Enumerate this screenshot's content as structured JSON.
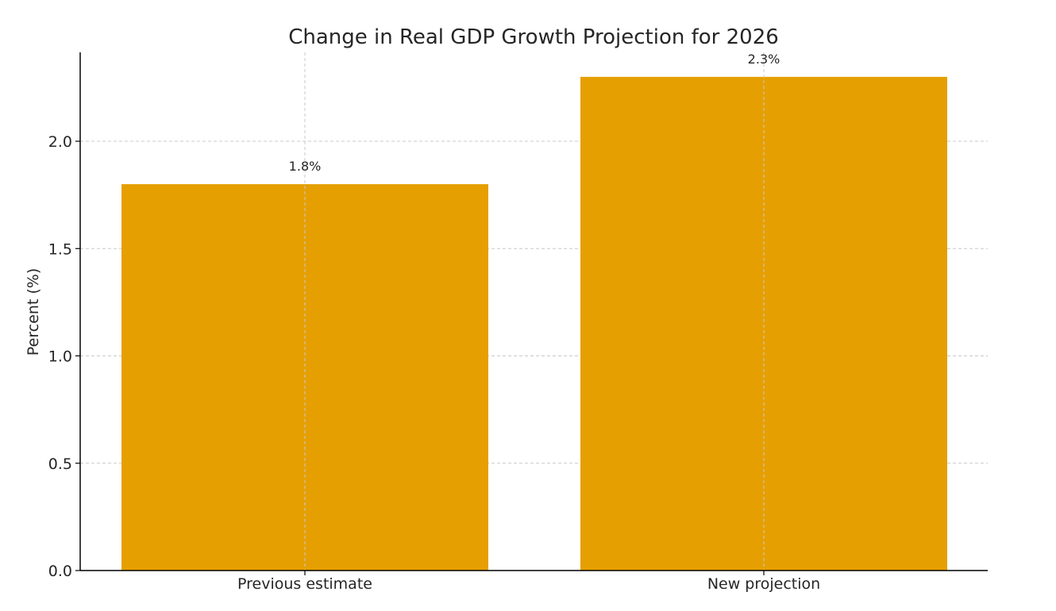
{
  "chart_data": {
    "type": "bar",
    "title": "Change in Real GDP Growth Projection for 2026",
    "xlabel": "",
    "ylabel": "Percent (%)",
    "categories": [
      "Previous estimate",
      "New projection"
    ],
    "values": [
      1.8,
      2.3
    ],
    "data_labels": [
      "1.8%",
      "2.3%"
    ],
    "ylim": [
      0,
      2.3
    ],
    "yticks": [
      0.0,
      0.5,
      1.0,
      1.5,
      2.0
    ],
    "ytick_labels": [
      "0.0",
      "0.5",
      "1.0",
      "1.5",
      "2.0"
    ],
    "grid": true,
    "bar_color": "#E69F00"
  }
}
